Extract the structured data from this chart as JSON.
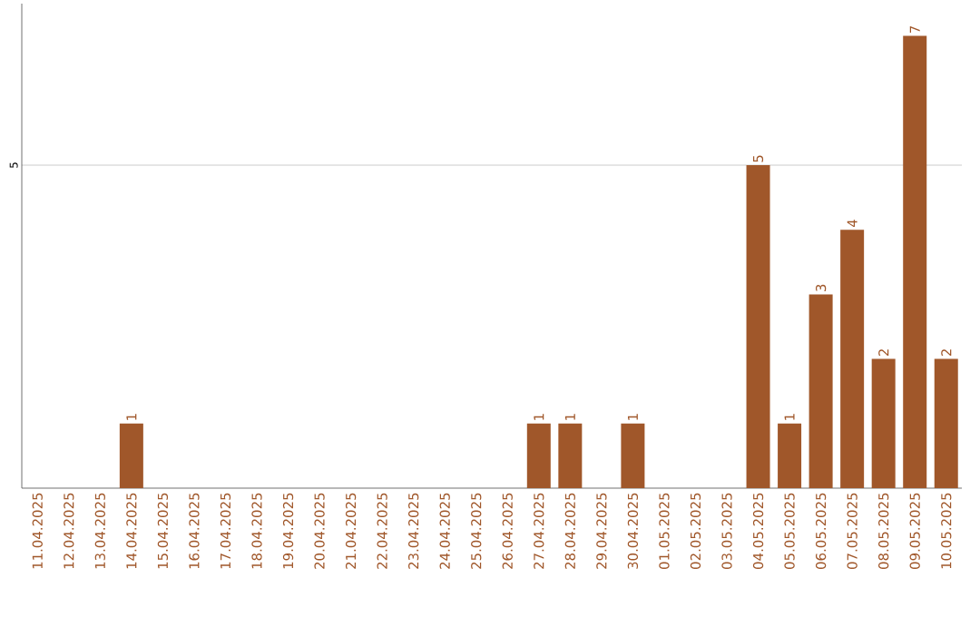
{
  "chart_data": {
    "type": "bar",
    "categories": [
      "11.04.2025",
      "12.04.2025",
      "13.04.2025",
      "14.04.2025",
      "15.04.2025",
      "16.04.2025",
      "17.04.2025",
      "18.04.2025",
      "19.04.2025",
      "20.04.2025",
      "21.04.2025",
      "22.04.2025",
      "23.04.2025",
      "24.04.2025",
      "25.04.2025",
      "26.04.2025",
      "27.04.2025",
      "28.04.2025",
      "29.04.2025",
      "30.04.2025",
      "01.05.2025",
      "02.05.2025",
      "03.05.2025",
      "04.05.2025",
      "05.05.2025",
      "06.05.2025",
      "07.05.2025",
      "08.05.2025",
      "09.05.2025",
      "10.05.2025"
    ],
    "values": [
      0,
      0,
      0,
      1,
      0,
      0,
      0,
      0,
      0,
      0,
      0,
      0,
      0,
      0,
      0,
      0,
      1,
      1,
      0,
      1,
      0,
      0,
      0,
      5,
      1,
      3,
      4,
      2,
      7,
      2
    ],
    "value_labels": [
      null,
      null,
      null,
      "1",
      null,
      null,
      null,
      null,
      null,
      null,
      null,
      null,
      null,
      null,
      null,
      null,
      "1",
      "1",
      null,
      "1",
      null,
      null,
      null,
      "5",
      "1",
      "3",
      "4",
      "2",
      "7",
      "2"
    ],
    "color": "#a0572a",
    "ylim": [
      0,
      7.5
    ],
    "yticks": [
      5
    ],
    "grid": "y"
  }
}
